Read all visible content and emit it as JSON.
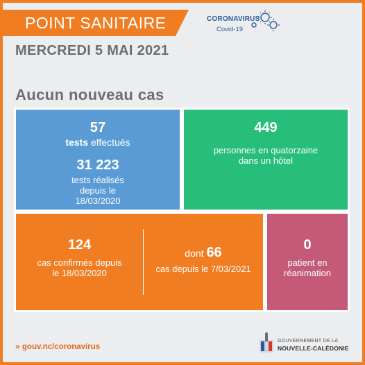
{
  "header": {
    "title": "POINT SANITAIRE",
    "brand_line1": "CORONAVIRUS",
    "brand_line2": "Covid-19"
  },
  "date": "MERCREDI 5 MAI 2021",
  "headline": "Aucun nouveau cas",
  "tiles": {
    "tests": {
      "value": "57",
      "label_bold": "tests",
      "label_rest": " effectués",
      "total": "31 223",
      "total_line1": "tests réalisés",
      "total_line2": "depuis le",
      "total_line3": "18/03/2020"
    },
    "quarantine": {
      "value": "449",
      "line1": "personnes en quatorzaine",
      "line2": "dans un hôtel"
    },
    "cases": {
      "value": "124",
      "line1": "cas confirmés depuis",
      "line2": "le 18/03/2020",
      "sub_prefix": "dont ",
      "sub_value": "66",
      "sub_line": "cas depuis le 7/03/2021"
    },
    "icu": {
      "value": "0",
      "line1": "patient en",
      "line2": "réanimation"
    }
  },
  "footer": {
    "link": "gouv.nc/coronavirus",
    "gov_line1": "GOUVERNEMENT DE LA",
    "gov_line2": "NOUVELLE-CALÉDONIE"
  },
  "colors": {
    "accent_orange": "#f07d22",
    "blue": "#5a9bd6",
    "green": "#26be79",
    "rose": "#c45a77",
    "grey_text": "#6d6e71",
    "brand_blue": "#2a5a9c"
  },
  "icons": {
    "virus": "virus-icon",
    "link": "chevron-double-right-icon",
    "gov": "government-emblem-icon"
  }
}
